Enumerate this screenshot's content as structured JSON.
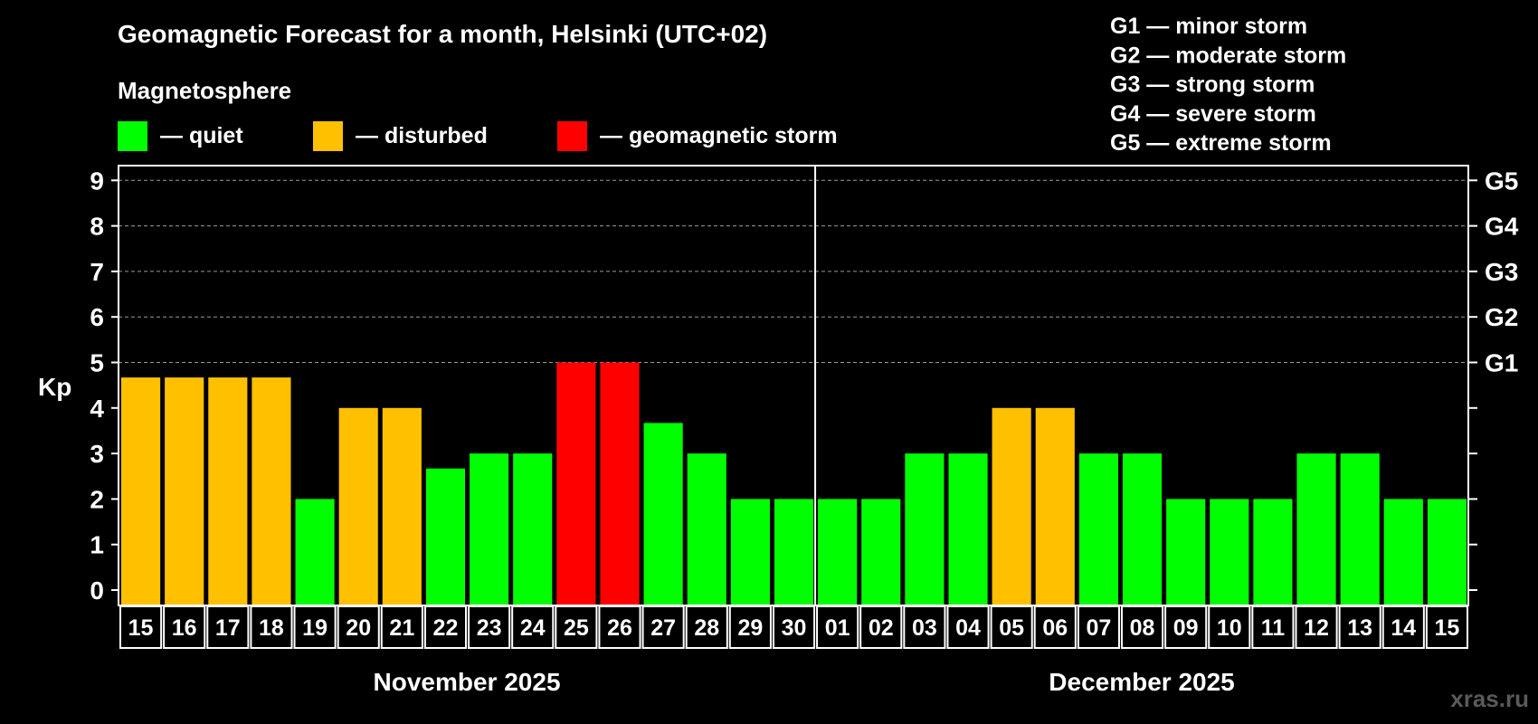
{
  "chart_data": {
    "type": "bar",
    "title": "Geomagnetic Forecast for a month, Helsinki (UTC+02)",
    "ylabel": "Kp",
    "ylim": [
      0,
      9
    ],
    "yticks": [
      "0",
      "1",
      "2",
      "3",
      "4",
      "5",
      "6",
      "7",
      "8",
      "9"
    ],
    "storm_levels": [
      {
        "kp": 5,
        "label": "G1"
      },
      {
        "kp": 6,
        "label": "G2"
      },
      {
        "kp": 7,
        "label": "G3"
      },
      {
        "kp": 8,
        "label": "G4"
      },
      {
        "kp": 9,
        "label": "G5"
      }
    ],
    "legend_title": "Magnetosphere",
    "legend": [
      {
        "label": "— quiet",
        "color": "#00ff00"
      },
      {
        "label": "— disturbed",
        "color": "#ffc000"
      },
      {
        "label": "— geomagnetic storm",
        "color": "#ff0000"
      }
    ],
    "storm_key": [
      "G1 — minor storm",
      "G2 — moderate storm",
      "G3 — strong storm",
      "G4 — severe storm",
      "G5 — extreme storm"
    ],
    "categories": [
      "15",
      "16",
      "17",
      "18",
      "19",
      "20",
      "21",
      "22",
      "23",
      "24",
      "25",
      "26",
      "27",
      "28",
      "29",
      "30",
      "01",
      "02",
      "03",
      "04",
      "05",
      "06",
      "07",
      "08",
      "09",
      "10",
      "11",
      "12",
      "13",
      "14",
      "15"
    ],
    "values": [
      4.67,
      4.67,
      4.67,
      4.67,
      2,
      4,
      4,
      2.67,
      3,
      3,
      5,
      5,
      3.67,
      3,
      2,
      2,
      2,
      2,
      3,
      3,
      4,
      4,
      3,
      3,
      2,
      2,
      2,
      3,
      3,
      2,
      2
    ],
    "status": [
      "disturbed",
      "disturbed",
      "disturbed",
      "disturbed",
      "quiet",
      "disturbed",
      "disturbed",
      "quiet",
      "quiet",
      "quiet",
      "storm",
      "storm",
      "quiet",
      "quiet",
      "quiet",
      "quiet",
      "quiet",
      "quiet",
      "quiet",
      "quiet",
      "disturbed",
      "disturbed",
      "quiet",
      "quiet",
      "quiet",
      "quiet",
      "quiet",
      "quiet",
      "quiet",
      "quiet",
      "quiet"
    ],
    "colors": {
      "quiet": "#00ff00",
      "disturbed": "#ffc000",
      "storm": "#ff0000"
    },
    "months": [
      {
        "label": "November 2025",
        "days": 16
      },
      {
        "label": "December 2025",
        "days": 15
      }
    ]
  },
  "watermark": "xras.ru"
}
